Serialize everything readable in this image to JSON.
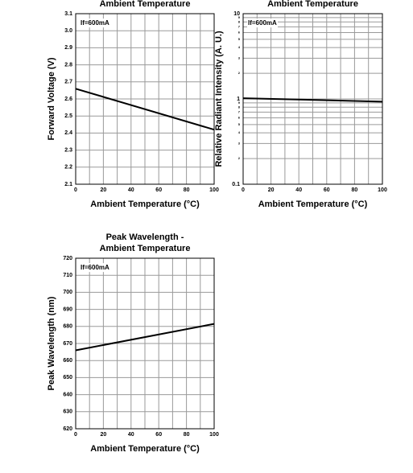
{
  "chart_data": [
    {
      "type": "line",
      "title": [
        "Ambient Temperature"
      ],
      "x_label": "Ambient Temperature (°C)",
      "y_label": "Forward Voltage (V)",
      "annotation": "If=600mA",
      "x": [
        0,
        100
      ],
      "series": [
        {
          "color": "#000000",
          "values": [
            2.66,
            2.42
          ]
        }
      ],
      "xlim": [
        0,
        100
      ],
      "xticks": [
        0,
        20,
        40,
        60,
        80,
        100
      ],
      "x_minor_ticks": [
        10,
        30,
        50,
        70,
        90
      ],
      "ylim": [
        2.1,
        3.1
      ],
      "yticks": [
        2.1,
        2.2,
        2.3,
        2.4,
        2.5,
        2.6,
        2.7,
        2.8,
        2.9,
        {
          "value": 3,
          "label": "3.0"
        },
        3.1
      ],
      "y_minor_ticks": [],
      "log_y": false,
      "grid": true
    },
    {
      "type": "line",
      "title": [
        "Ambient Temperature"
      ],
      "x_label": "Ambient Temperature (°C)",
      "y_label": "Relative Radiant Intensity (A. U.)",
      "annotation": "If=600mA",
      "x": [
        0,
        100
      ],
      "series": [
        {
          "color": "#000000",
          "values": [
            1.02,
            0.93
          ]
        }
      ],
      "xlim": [
        0,
        100
      ],
      "xticks": [
        0,
        20,
        40,
        60,
        80,
        100
      ],
      "x_minor_ticks": [
        10,
        30,
        50,
        70,
        90
      ],
      "ylim": [
        0.1,
        10
      ],
      "yticks": [
        0.1,
        1,
        10
      ],
      "y_minor_ticks": [
        {
          "value": 0.2,
          "label": "2"
        },
        {
          "value": 0.3,
          "label": "3"
        },
        {
          "value": 0.4,
          "label": "4"
        },
        {
          "value": 0.5,
          "label": "5"
        },
        {
          "value": 0.6,
          "label": "6"
        },
        {
          "value": 0.7,
          "label": "7"
        },
        {
          "value": 0.8,
          "label": "8"
        },
        {
          "value": 0.9,
          "label": "9"
        },
        {
          "value": 2,
          "label": "2"
        },
        {
          "value": 3,
          "label": "3"
        },
        {
          "value": 4,
          "label": "4"
        },
        {
          "value": 5,
          "label": "5"
        },
        {
          "value": 6,
          "label": "6"
        },
        {
          "value": 7,
          "label": "7"
        },
        {
          "value": 8,
          "label": "8"
        },
        {
          "value": 9,
          "label": "9"
        }
      ],
      "log_y": true,
      "grid": true
    },
    {
      "type": "line",
      "title": [
        "Peak Wavelength -",
        "Ambient Temperature"
      ],
      "x_label": "Ambient Temperature (°C)",
      "y_label": "Peak Wavelength (nm)",
      "annotation": "If=600mA",
      "x": [
        0,
        100
      ],
      "series": [
        {
          "color": "#000000",
          "values": [
            666,
            681.5
          ]
        }
      ],
      "xlim": [
        0,
        100
      ],
      "xticks": [
        0,
        20,
        40,
        60,
        80,
        100
      ],
      "x_minor_ticks": [
        10,
        30,
        50,
        70,
        90
      ],
      "ylim": [
        620,
        720
      ],
      "yticks": [
        620,
        630,
        640,
        650,
        660,
        670,
        680,
        690,
        700,
        710,
        720
      ],
      "y_minor_ticks": [],
      "log_y": false,
      "grid": true
    }
  ]
}
